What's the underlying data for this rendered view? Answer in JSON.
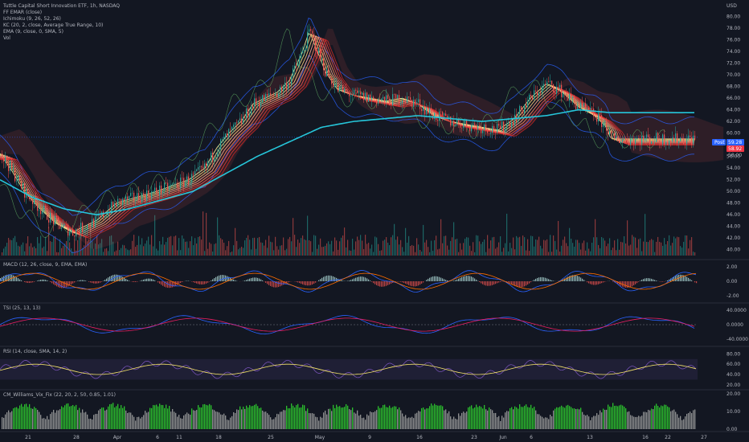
{
  "header": {
    "title": "Tuttle Capital Short Innovation ETF, 1h, NASDAQ",
    "currency": "USD"
  },
  "indicators": [
    "FF EMAR (close)",
    "Ichimoku (9, 26, 52, 26)",
    "KC (20, 2, close, Average True Range, 10)",
    "EMA (9, close, 0, SMA, 5)",
    "Vol"
  ],
  "price_badges": {
    "post_label": "Post",
    "post_value": "59.28",
    "last_value": "58.92",
    "next_value": "58.00"
  },
  "colors": {
    "background": "#131722",
    "up": "#26a69a",
    "down": "#ef5350",
    "ema_long": "#26c6da",
    "macd_line": "#2962ff",
    "signal_line": "#ff6d00",
    "tsi_line": "#2962ff",
    "tsi_signal": "#e91e63",
    "rsi_line": "#7e57c2",
    "rsi_ma": "#f5e36b",
    "vix_high": "#2fd12f",
    "vix_normal": "#9e9e9e",
    "badge_blue": "#2962ff",
    "badge_red": "#f23645"
  },
  "chart_data": [
    {
      "type": "line",
      "title": "Tuttle Capital Short Innovation ETF, 1h, NASDAQ",
      "y_axis_ticks": [
        "80.00",
        "78.00",
        "76.00",
        "74.00",
        "72.00",
        "70.00",
        "68.00",
        "66.00",
        "64.00",
        "62.00",
        "60.00",
        "58.00",
        "56.00",
        "54.00",
        "52.00",
        "50.00",
        "48.00",
        "46.00",
        "44.00",
        "42.00",
        "40.00"
      ],
      "ylim": [
        39,
        82
      ],
      "x_axis_ticks": [
        "21",
        "28",
        "Apr",
        "6",
        "11",
        "18",
        "25",
        "May",
        "9",
        "16",
        "23",
        "Jun",
        "6",
        "13",
        "16",
        "22",
        "27"
      ],
      "price_anchors": [
        [
          0,
          56.5
        ],
        [
          15,
          53.5
        ],
        [
          30,
          50
        ],
        [
          50,
          47
        ],
        [
          70,
          44.5
        ],
        [
          90,
          43
        ],
        [
          120,
          45
        ],
        [
          145,
          48
        ],
        [
          170,
          49
        ],
        [
          195,
          50
        ],
        [
          215,
          51
        ],
        [
          235,
          52
        ],
        [
          255,
          54
        ],
        [
          270,
          57.5
        ],
        [
          285,
          60
        ],
        [
          300,
          62
        ],
        [
          315,
          65
        ],
        [
          330,
          66
        ],
        [
          345,
          67
        ],
        [
          360,
          69
        ],
        [
          375,
          73.5
        ],
        [
          385,
          77.5
        ],
        [
          395,
          74
        ],
        [
          405,
          70.5
        ],
        [
          420,
          67.5
        ],
        [
          440,
          66.5
        ],
        [
          460,
          66
        ],
        [
          480,
          65.5
        ],
        [
          500,
          66
        ],
        [
          520,
          65
        ],
        [
          540,
          63
        ],
        [
          560,
          62
        ],
        [
          580,
          61.5
        ],
        [
          600,
          61
        ],
        [
          620,
          60.5
        ],
        [
          640,
          62.5
        ],
        [
          660,
          66
        ],
        [
          680,
          68.5
        ],
        [
          700,
          67
        ],
        [
          720,
          64.5
        ],
        [
          740,
          63
        ],
        [
          755,
          61
        ],
        [
          760,
          59
        ]
      ],
      "ema_long_anchors": [
        [
          0,
          52
        ],
        [
          40,
          49
        ],
        [
          80,
          47
        ],
        [
          120,
          46
        ],
        [
          160,
          47
        ],
        [
          200,
          48.5
        ],
        [
          240,
          50
        ],
        [
          280,
          53
        ],
        [
          320,
          56
        ],
        [
          360,
          58.5
        ],
        [
          400,
          61
        ],
        [
          440,
          62
        ],
        [
          480,
          62.5
        ],
        [
          520,
          63
        ],
        [
          560,
          62.5
        ],
        [
          600,
          62
        ],
        [
          640,
          62.5
        ],
        [
          680,
          63
        ],
        [
          720,
          64
        ],
        [
          760,
          63.5
        ]
      ]
    },
    {
      "type": "bar",
      "title": "MACD (12, 26, close, 9, EMA, EMA)",
      "y_axis_ticks": [
        "2.00",
        "0.00",
        "-2.00"
      ]
    },
    {
      "type": "line",
      "title": "TSI (25, 13, 13)",
      "y_axis_ticks": [
        "40.0000",
        "0.0000",
        "-40.0000"
      ]
    },
    {
      "type": "line",
      "title": "RSI (14, close, SMA, 14, 2)",
      "y_axis_ticks": [
        "80.00",
        "60.00",
        "40.00",
        "20.00"
      ]
    },
    {
      "type": "bar",
      "title": "CM_Williams_Vix_Fix (22, 20, 2, 50, 0.85, 1.01)",
      "y_axis_ticks": [
        "20.00",
        "10.00",
        "0.00"
      ]
    }
  ]
}
